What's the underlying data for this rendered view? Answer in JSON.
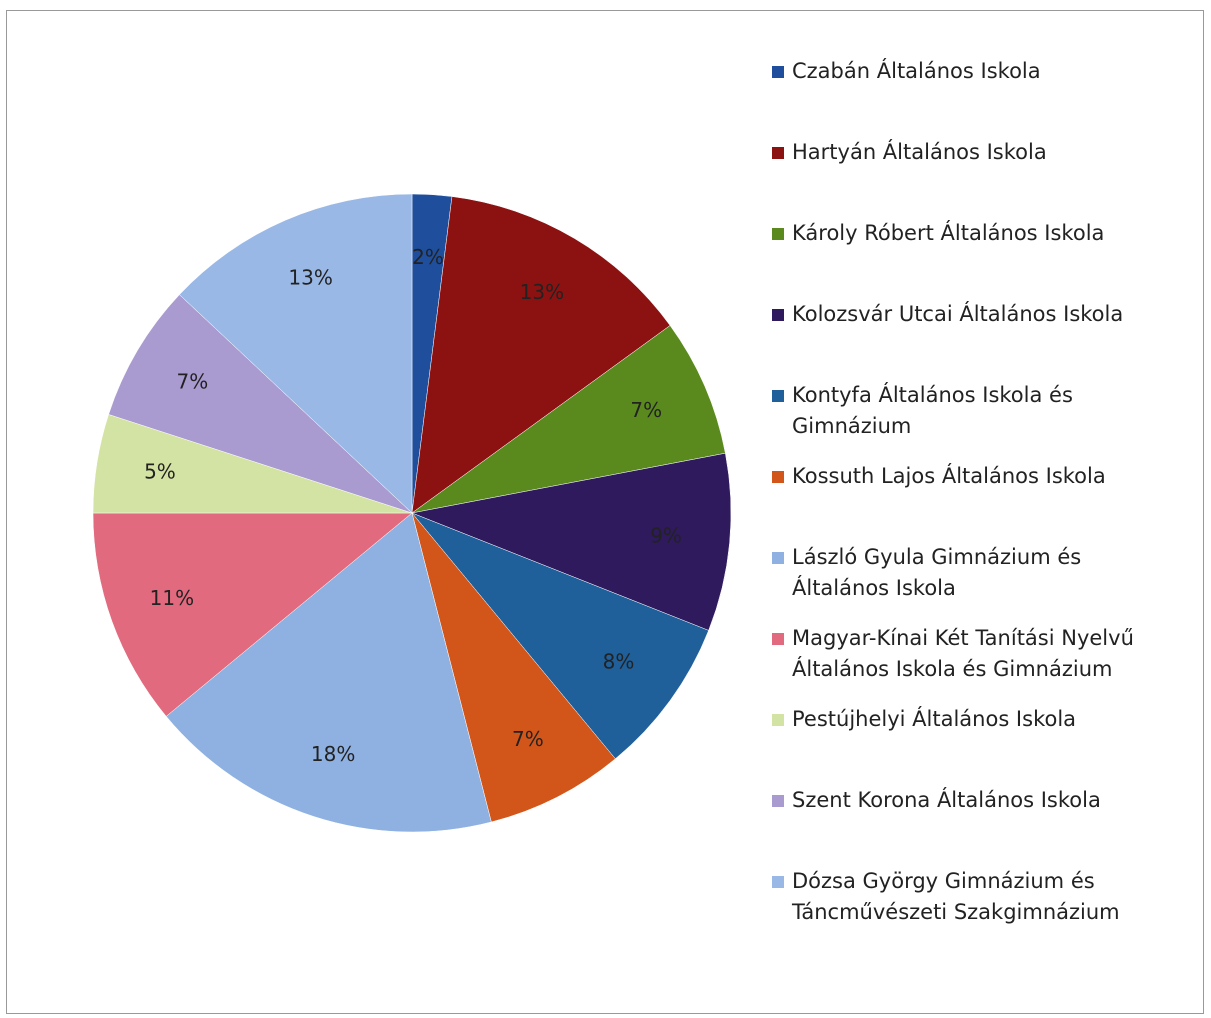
{
  "chart_data": {
    "type": "pie",
    "categories": [
      "Czabán Általános Iskola",
      "Hartyán Általános Iskola",
      "Károly Róbert Általános Iskola",
      "Kolozsvár Utcai Általános Iskola",
      "Kontyfa Általános Iskola és Gimnázium",
      "Kossuth Lajos Általános Iskola",
      "László Gyula Gimnázium és Általános Iskola",
      "Magyar-Kínai Két Tanítási Nyelvű Általános Iskola és Gimnázium",
      "Pestújhelyi Általános Iskola",
      "Szent Korona Általános Iskola",
      "Dózsa György Gimnázium és Táncművészeti Szakgimnázium"
    ],
    "values": [
      2,
      13,
      7,
      9,
      8,
      7,
      18,
      11,
      5,
      7,
      13
    ],
    "value_labels": [
      "2%",
      "13%",
      "7%",
      "9%",
      "8%",
      "7%",
      "18%",
      "11%",
      "5%",
      "7%",
      "13%"
    ],
    "colors": [
      "#1f4e9c",
      "#8c1212",
      "#5a8a1e",
      "#2e1a5c",
      "#1f5f9a",
      "#d2561a",
      "#8fb1e2",
      "#e26a7e",
      "#d3e3a3",
      "#a99ad0",
      "#9ab8e6"
    ],
    "legend": "right"
  }
}
